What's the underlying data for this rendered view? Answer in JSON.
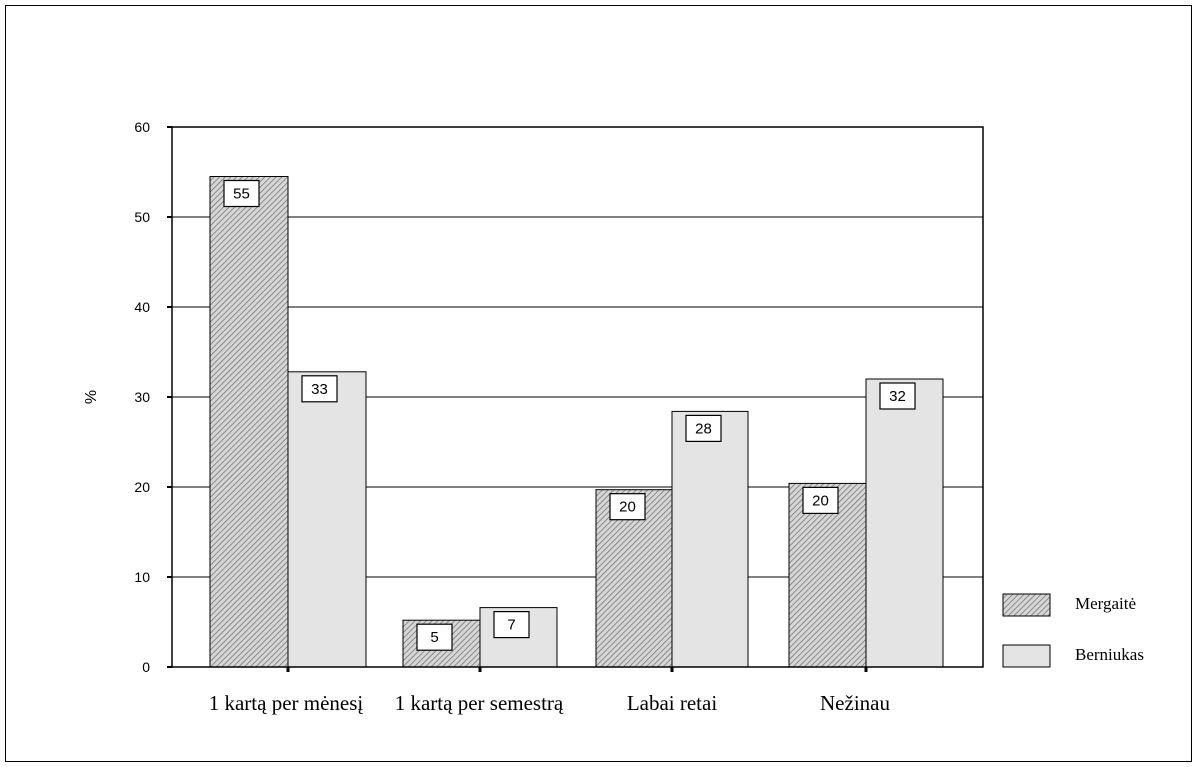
{
  "chart_data": {
    "type": "bar",
    "title": "",
    "xlabel": "",
    "ylabel": "%",
    "ylim": [
      0,
      60
    ],
    "yticks": [
      0,
      10,
      20,
      30,
      40,
      50,
      60
    ],
    "grid": true,
    "legend_position": "bottom-right",
    "categories": [
      "1 kartą per mėnesį",
      "1 kartą per semestrą",
      "Labai retai",
      "Nežinau"
    ],
    "series": [
      {
        "name": "Mergaitė",
        "values": [
          54.5,
          5.2,
          19.7,
          20.4
        ],
        "labels": [
          "55",
          "5",
          "20",
          "20"
        ],
        "pattern": "hatched",
        "color": "#c8c8c8"
      },
      {
        "name": "Berniukas",
        "values": [
          32.8,
          6.6,
          28.4,
          32.0
        ],
        "labels": [
          "33",
          "7",
          "28",
          "32"
        ],
        "pattern": "solid",
        "color": "#e4e4e4"
      }
    ]
  }
}
